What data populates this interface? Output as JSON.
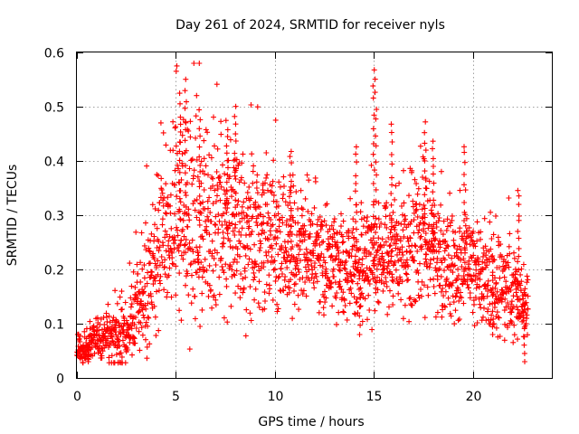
{
  "chart_data": {
    "type": "scatter",
    "title": "Day 261 of 2024, SRMTID for receiver nyls",
    "xlabel": "GPS time / hours",
    "ylabel": "SRMTID / TECUs",
    "xlim": [
      0,
      24
    ],
    "ylim": [
      0,
      0.6
    ],
    "xticks": [
      0,
      5,
      10,
      15,
      20
    ],
    "xtick_labels": [
      "0",
      "5",
      "10",
      "15",
      "20"
    ],
    "yticks": [
      0,
      0.1,
      0.2,
      0.3,
      0.4,
      0.5,
      0.6
    ],
    "ytick_labels": [
      "0",
      "0.1",
      "0.2",
      "0.3",
      "0.4",
      "0.5",
      "0.6"
    ],
    "grid": true,
    "marker": "+",
    "color": "#ff0000",
    "series": [
      {
        "name": "SRMTID",
        "profile_x": [
          0,
          0.5,
          1,
          1.5,
          2,
          2.5,
          3,
          3.5,
          4,
          4.5,
          5,
          5.5,
          6,
          6.5,
          7,
          7.5,
          8,
          8.5,
          9,
          9.5,
          10,
          10.5,
          11,
          11.5,
          12,
          12.5,
          13,
          13.5,
          14,
          14.5,
          15,
          15.5,
          16,
          16.5,
          17,
          17.5,
          18,
          18.5,
          19,
          19.5,
          20,
          20.5,
          21,
          21.5,
          22,
          22.5,
          22.8
        ],
        "profile_median": [
          0.06,
          0.06,
          0.07,
          0.075,
          0.08,
          0.09,
          0.12,
          0.17,
          0.22,
          0.26,
          0.29,
          0.3,
          0.29,
          0.28,
          0.27,
          0.27,
          0.28,
          0.28,
          0.27,
          0.26,
          0.25,
          0.24,
          0.24,
          0.24,
          0.23,
          0.22,
          0.21,
          0.2,
          0.2,
          0.2,
          0.22,
          0.22,
          0.22,
          0.22,
          0.24,
          0.25,
          0.24,
          0.22,
          0.21,
          0.2,
          0.2,
          0.19,
          0.18,
          0.17,
          0.16,
          0.14,
          0.13
        ],
        "profile_spread": [
          0.015,
          0.015,
          0.02,
          0.025,
          0.03,
          0.035,
          0.05,
          0.06,
          0.07,
          0.08,
          0.1,
          0.11,
          0.1,
          0.09,
          0.085,
          0.08,
          0.09,
          0.08,
          0.07,
          0.06,
          0.06,
          0.06,
          0.06,
          0.055,
          0.05,
          0.05,
          0.05,
          0.05,
          0.05,
          0.055,
          0.06,
          0.055,
          0.05,
          0.06,
          0.07,
          0.065,
          0.06,
          0.055,
          0.05,
          0.05,
          0.05,
          0.045,
          0.045,
          0.04,
          0.04,
          0.035,
          0.035
        ],
        "peaks": [
          {
            "x": 5.5,
            "y": 0.55
          },
          {
            "x": 5.2,
            "y": 0.52
          },
          {
            "x": 6.2,
            "y": 0.49
          },
          {
            "x": 8.0,
            "y": 0.5
          },
          {
            "x": 7.6,
            "y": 0.46
          },
          {
            "x": 10.8,
            "y": 0.42
          },
          {
            "x": 14.1,
            "y": 0.43
          },
          {
            "x": 15.0,
            "y": 0.57
          },
          {
            "x": 15.1,
            "y": 0.55
          },
          {
            "x": 15.9,
            "y": 0.47
          },
          {
            "x": 17.6,
            "y": 0.47
          },
          {
            "x": 18.0,
            "y": 0.44
          },
          {
            "x": 19.6,
            "y": 0.43
          },
          {
            "x": 22.3,
            "y": 0.35
          }
        ],
        "troughs": [
          {
            "x": 0.6,
            "y": 0.03
          },
          {
            "x": 22.6,
            "y": 0.03
          },
          {
            "x": 14.3,
            "y": 0.08
          },
          {
            "x": 21.0,
            "y": 0.08
          }
        ],
        "x_end": 22.8,
        "point_count": 2200
      }
    ]
  }
}
